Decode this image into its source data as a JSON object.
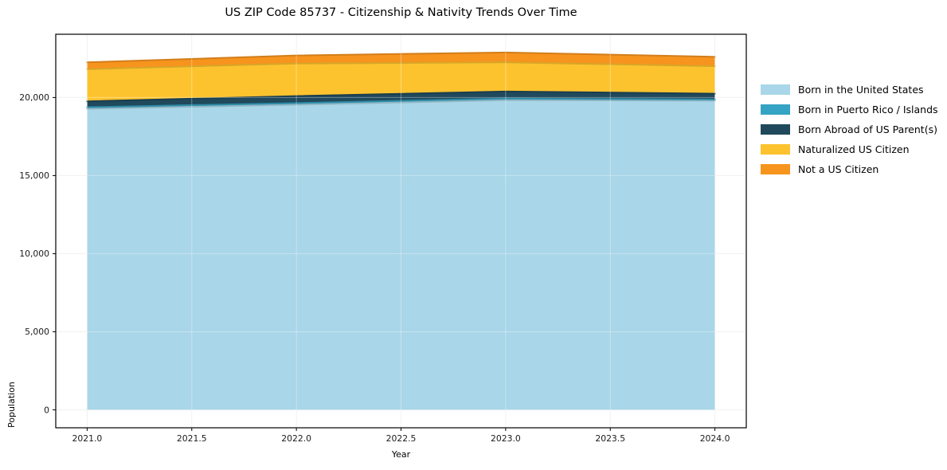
{
  "title": "US ZIP Code 85737 - Citizenship & Nativity Trends Over Time",
  "chart_data": {
    "type": "area",
    "stacked": true,
    "title": "US ZIP Code 85737 - Citizenship & Nativity Trends Over Time",
    "xlabel": "Year",
    "ylabel": "Population",
    "x": [
      2021,
      2022,
      2023,
      2024
    ],
    "series": [
      {
        "name": "Born in the United States",
        "color": "#A9D6E8",
        "values": [
          19280,
          19540,
          19830,
          19795
        ]
      },
      {
        "name": "Born in Puerto Rico / Islands",
        "color": "#35A3C3",
        "values": [
          100,
          105,
          105,
          80
        ]
      },
      {
        "name": "Born Abroad of US Parent(s)",
        "color": "#20495C",
        "values": [
          375,
          445,
          450,
          370
        ]
      },
      {
        "name": "Naturalized US Citizen",
        "color": "#FDC32F",
        "values": [
          2060,
          2085,
          1870,
          1760
        ]
      },
      {
        "name": "Not a US Citizen",
        "color": "#F7941E",
        "values": [
          440,
          515,
          630,
          600
        ]
      }
    ],
    "x_ticks": [
      2021.0,
      2021.5,
      2022.0,
      2022.5,
      2023.0,
      2023.5,
      2024.0
    ],
    "x_tick_labels": [
      "2021.0",
      "2021.5",
      "2022.0",
      "2022.5",
      "2023.0",
      "2023.5",
      "2024.0"
    ],
    "y_ticks": [
      0,
      5000,
      10000,
      15000,
      20000
    ],
    "y_tick_labels": [
      "0",
      "5,000",
      "10,000",
      "15,000",
      "20,000"
    ],
    "xlim": [
      2020.85,
      2024.15
    ],
    "ylim": [
      -1150,
      24050
    ],
    "grid": true,
    "legend_position": "outside-right-top",
    "spine_color": "#000000",
    "grid_color_under": "#ececec",
    "grid_color_over": "rgba(255,255,255,0.35)"
  }
}
